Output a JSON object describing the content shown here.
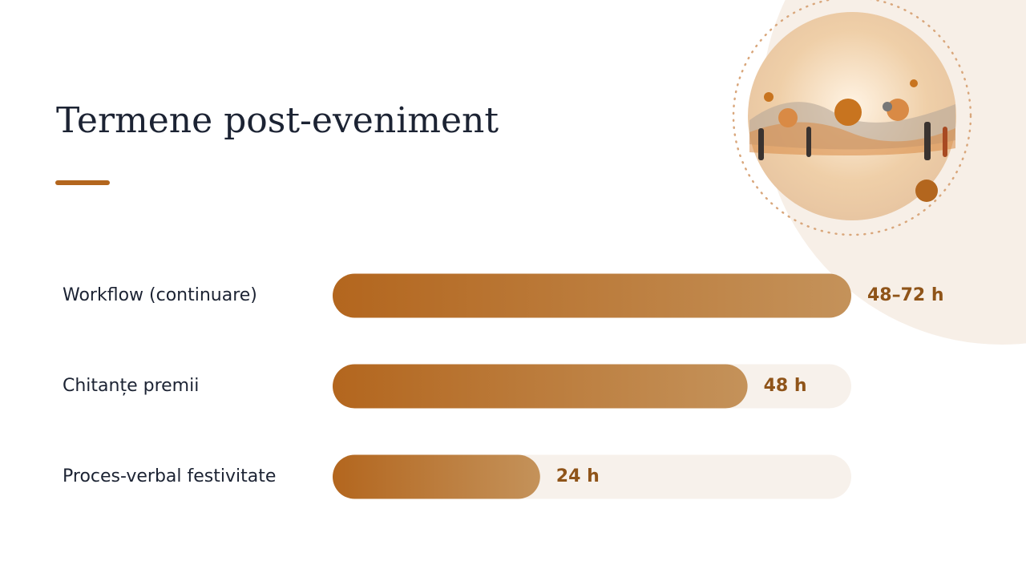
{
  "chart_data": {
    "type": "bar",
    "orientation": "horizontal",
    "title": "Termene post-eveniment",
    "categories": [
      "Workflow (continuare)",
      "Chitanțe premii",
      "Proces-verbal festivitate"
    ],
    "values": [
      60,
      48,
      24
    ],
    "value_labels": [
      "48–72 h",
      "48 h",
      "24 h"
    ],
    "color": "#b3661e",
    "xlim": [
      0,
      60
    ]
  }
}
